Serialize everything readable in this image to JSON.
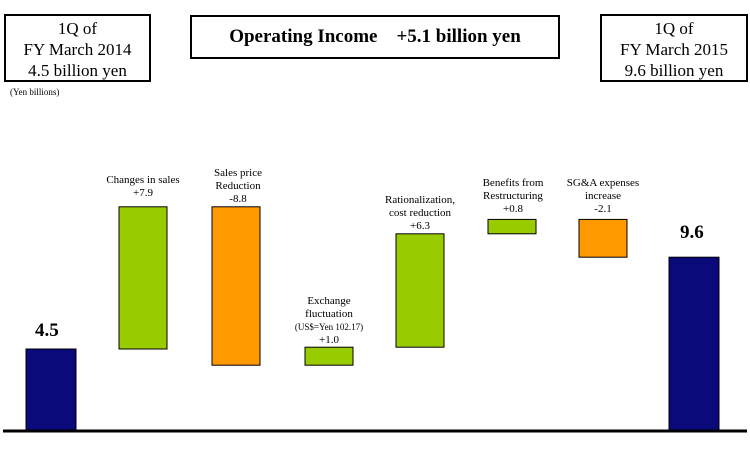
{
  "header": {
    "left_box": {
      "line1": "1Q of",
      "line2": "FY March 2014",
      "line3": "4.5 billion yen"
    },
    "right_box": {
      "line1": "1Q of",
      "line2": "FY March 2015",
      "line3": "9.6 billion yen"
    },
    "title_left": "Operating Income",
    "title_right": "+5.1 billion yen"
  },
  "unit_label": "(Yen billions)",
  "colors": {
    "total": "#0a0a7a",
    "increase": "#99cc00",
    "decrease": "#ff9900",
    "baseline": "#000000"
  },
  "chart_data": {
    "type": "bar",
    "subtype": "waterfall",
    "categories": [
      "1Q of FY March 2014",
      "Changes in sales",
      "Sales price Reduction",
      "Exchange fluctuation",
      "Rationalization, cost reduction",
      "Benefits from Restructuring",
      "SG&A expenses increase",
      "1Q of FY March 2015"
    ],
    "values": [
      4.5,
      7.9,
      -8.8,
      1.0,
      6.3,
      0.8,
      -2.1,
      9.6
    ],
    "kinds": [
      "total",
      "increase",
      "decrease",
      "increase",
      "increase",
      "increase",
      "decrease",
      "total"
    ],
    "value_labels": [
      "4.5",
      "+7.9",
      "-8.8",
      "+1.0",
      "+6.3",
      "+0.8",
      "-2.1",
      "9.6"
    ],
    "annotations": {
      "changes_in_sales": [
        "Changes in sales",
        "+7.9"
      ],
      "sales_price": [
        "Sales price",
        "Reduction",
        "-8.8"
      ],
      "exchange": [
        "Exchange",
        "fluctuation",
        "(US$=Yen 102.17)",
        "+1.0"
      ],
      "rationalization": [
        "Rationalization,",
        "cost reduction",
        "+6.3"
      ],
      "restructuring": [
        "Benefits from",
        "Restructuring",
        "+0.8"
      ],
      "sga": [
        "SG&A expenses",
        "increase",
        "-2.1"
      ]
    },
    "ylim": [
      0,
      13.5
    ],
    "ylabel": "(Yen billions)"
  }
}
